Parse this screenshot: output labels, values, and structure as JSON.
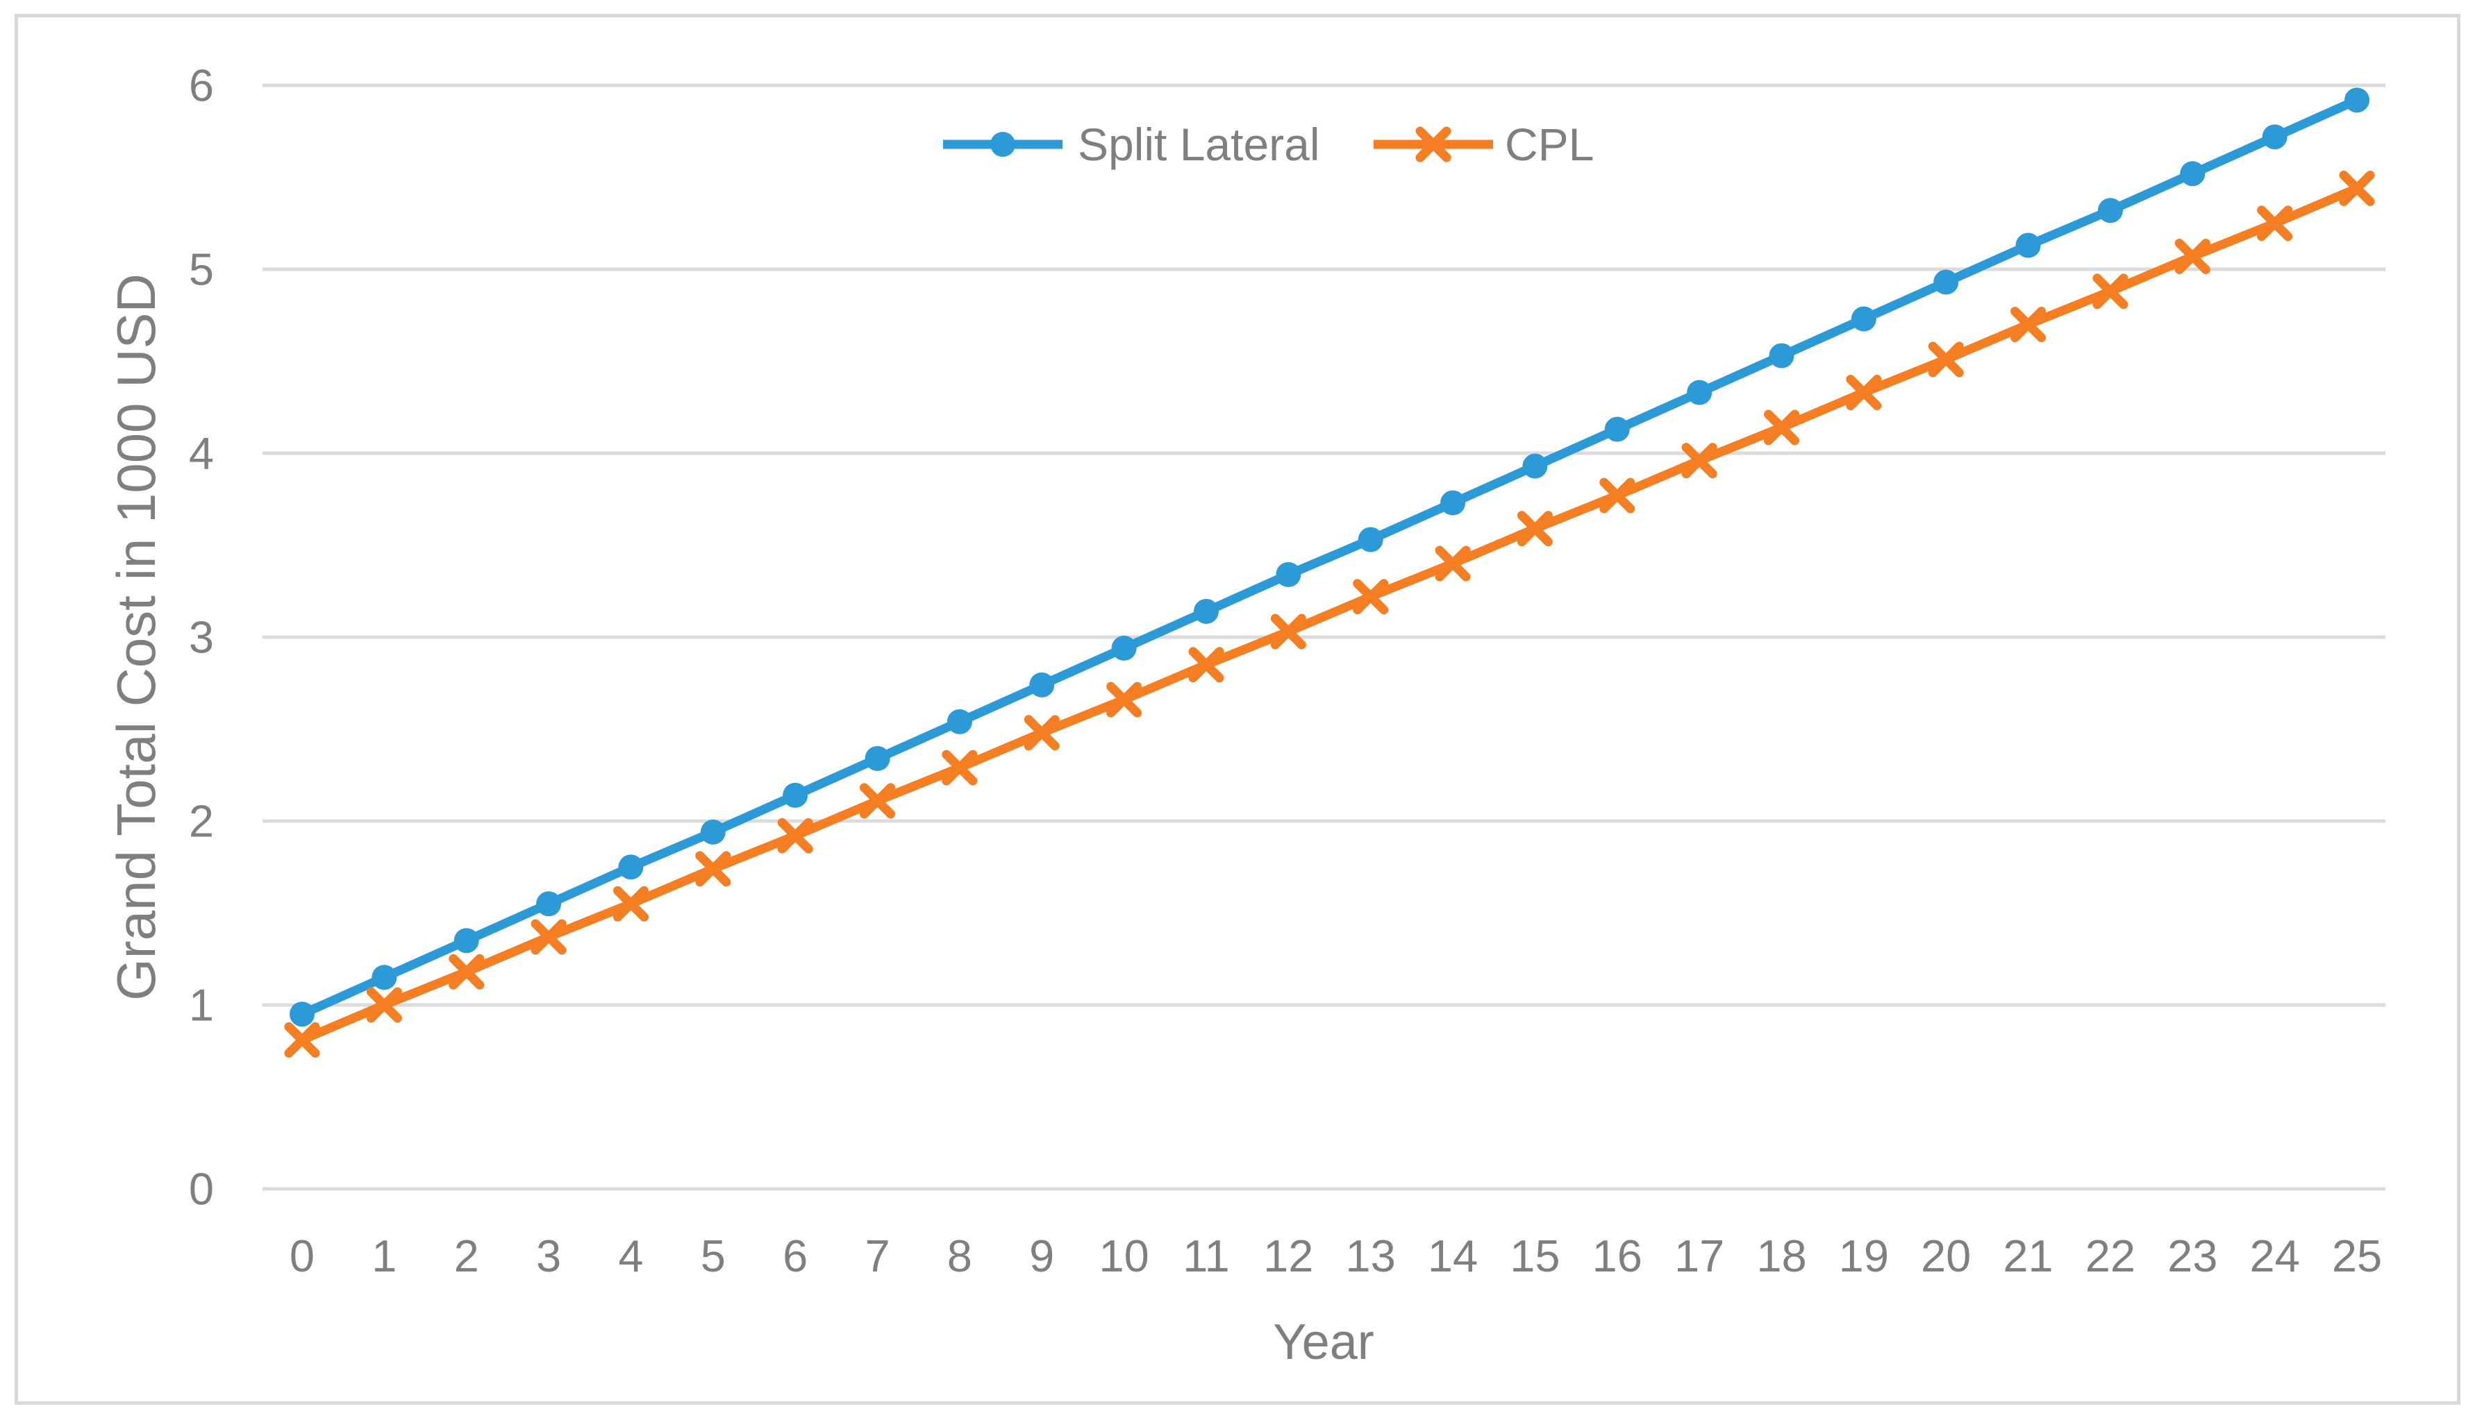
{
  "figure": {
    "background_color": "#FFFFFF",
    "border_color": "#D9D9D9"
  },
  "chart_data": {
    "type": "line",
    "xlabel": "Year",
    "ylabel": "Grand Total Cost in 1000 USD",
    "categories": [
      0,
      1,
      2,
      3,
      4,
      5,
      6,
      7,
      8,
      9,
      10,
      11,
      12,
      13,
      14,
      15,
      16,
      17,
      18,
      19,
      20,
      21,
      22,
      23,
      24,
      25
    ],
    "yticks": [
      0,
      1,
      2,
      3,
      4,
      5,
      6
    ],
    "ylim": [
      0,
      6
    ],
    "grid": "horizontal-only",
    "gridline_color": "#DBDBDB",
    "axis_text_color": "#7F7F7F",
    "legend_position": "top-center",
    "series": [
      {
        "name": "Split Lateral",
        "color": "#2B9AD6",
        "marker": "circle",
        "values": [
          0.95,
          1.15,
          1.35,
          1.55,
          1.75,
          1.94,
          2.14,
          2.34,
          2.54,
          2.74,
          2.94,
          3.14,
          3.34,
          3.53,
          3.73,
          3.93,
          4.13,
          4.33,
          4.53,
          4.73,
          4.93,
          5.13,
          5.32,
          5.52,
          5.72,
          5.92
        ]
      },
      {
        "name": "CPL",
        "color": "#F57E22",
        "marker": "x",
        "values": [
          0.81,
          1.0,
          1.18,
          1.37,
          1.55,
          1.74,
          1.92,
          2.11,
          2.29,
          2.48,
          2.66,
          2.85,
          3.03,
          3.22,
          3.4,
          3.59,
          3.77,
          3.96,
          4.14,
          4.33,
          4.51,
          4.7,
          4.88,
          5.07,
          5.25,
          5.44
        ]
      }
    ]
  }
}
